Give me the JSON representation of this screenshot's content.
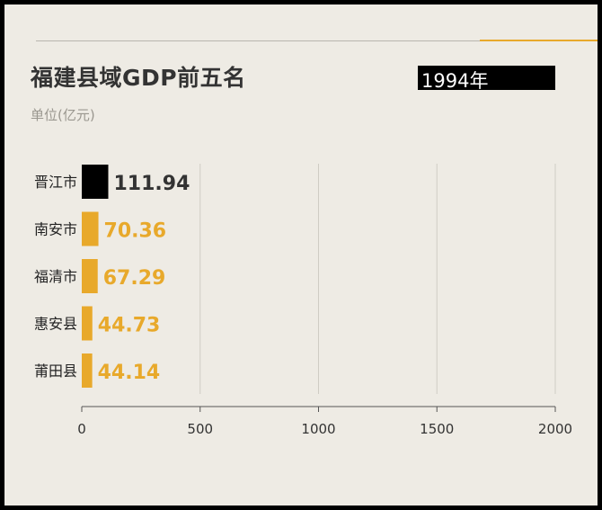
{
  "header": {
    "title": "福建县域GDP前五名",
    "subtitle": "单位(亿元)",
    "year": "1994年"
  },
  "colors": {
    "background": "#eeebe4",
    "highlight": "#000000",
    "bar": "#e8a92b",
    "accent_line": "#e8a92b",
    "grid": "#cfccc4",
    "text": "#333333"
  },
  "chart_data": {
    "type": "bar",
    "orientation": "horizontal",
    "title": "福建县域GDP前五名",
    "subtitle": "单位(亿元)",
    "annotation": "1994年",
    "categories": [
      "晋江市",
      "南安市",
      "福清市",
      "惠安县",
      "莆田县"
    ],
    "values": [
      111.94,
      70.36,
      67.29,
      44.73,
      44.14
    ],
    "value_labels": [
      "111.94",
      "70.36",
      "67.29",
      "44.73",
      "44.14"
    ],
    "xlim": [
      0,
      2000
    ],
    "xticks": [
      0,
      500,
      1000,
      1500,
      2000
    ],
    "xtick_labels": [
      "0",
      "500",
      "1000",
      "1500",
      "2000"
    ],
    "grid": true,
    "legend": "none"
  }
}
